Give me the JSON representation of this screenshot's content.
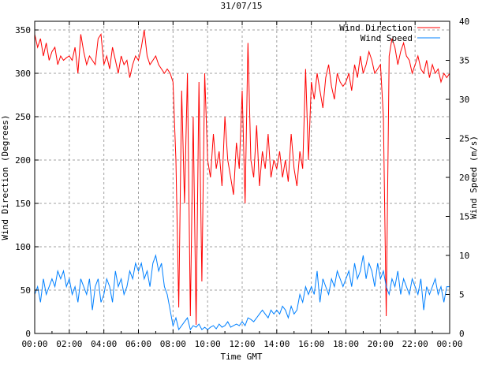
{
  "chart_data": {
    "type": "line",
    "title": "31/07/15",
    "xlabel": "Time GMT",
    "ylabel": "Wind Direction (Degrees)",
    "y2label": "Wind Speed (m/s)",
    "x_ticks": [
      "00:00",
      "02:00",
      "04:00",
      "06:00",
      "08:00",
      "10:00",
      "12:00",
      "14:00",
      "16:00",
      "18:00",
      "20:00",
      "22:00",
      "00:00"
    ],
    "x_range_hours": [
      0,
      24
    ],
    "ylim": [
      0,
      360
    ],
    "y_ticks": [
      0,
      50,
      100,
      150,
      200,
      250,
      300,
      350
    ],
    "y2lim": [
      0,
      40
    ],
    "y2_ticks": [
      0,
      5,
      10,
      15,
      20,
      25,
      30,
      35,
      40
    ],
    "grid": true,
    "legend_position": "top-right",
    "x_step_minutes": 10,
    "series": [
      {
        "name": "Wind Direction",
        "color": "#ff0000",
        "axis": "left",
        "values": [
          345,
          330,
          340,
          320,
          335,
          315,
          325,
          330,
          310,
          320,
          315,
          318,
          320,
          315,
          330,
          300,
          345,
          325,
          310,
          320,
          315,
          310,
          340,
          345,
          310,
          320,
          305,
          330,
          315,
          300,
          320,
          310,
          315,
          295,
          310,
          320,
          315,
          330,
          350,
          320,
          310,
          315,
          320,
          310,
          305,
          300,
          305,
          300,
          290,
          200,
          30,
          280,
          150,
          300,
          20,
          250,
          10,
          290,
          60,
          300,
          200,
          180,
          230,
          190,
          210,
          170,
          250,
          200,
          180,
          160,
          220,
          190,
          280,
          150,
          335,
          200,
          180,
          240,
          170,
          210,
          190,
          230,
          180,
          200,
          190,
          210,
          180,
          200,
          175,
          230,
          190,
          170,
          210,
          190,
          305,
          200,
          290,
          270,
          300,
          280,
          260,
          295,
          310,
          285,
          270,
          300,
          290,
          285,
          290,
          300,
          280,
          310,
          295,
          320,
          300,
          310,
          325,
          315,
          300,
          305,
          310,
          250,
          20,
          320,
          340,
          330,
          310,
          325,
          335,
          320,
          315,
          300,
          310,
          320,
          305,
          300,
          315,
          295,
          310,
          300,
          305,
          290,
          300,
          295,
          300
        ]
      },
      {
        "name": "Wind Speed",
        "color": "#0080ff",
        "axis": "right",
        "values": [
          5,
          6,
          4,
          7,
          5,
          6,
          7,
          6,
          8,
          7,
          8,
          6,
          7,
          5,
          6,
          4,
          7,
          6,
          5,
          7,
          3,
          6,
          7,
          4,
          5,
          7,
          6,
          4,
          8,
          6,
          7,
          5,
          6,
          8,
          7,
          9,
          8,
          9,
          7,
          8,
          6,
          9,
          10,
          8,
          9,
          6,
          5,
          3,
          1,
          2,
          0.5,
          1,
          1.5,
          2,
          0.5,
          1,
          0.8,
          1.2,
          0.5,
          0.8,
          0.5,
          0.8,
          1,
          0.6,
          1.2,
          0.8,
          1,
          1.5,
          0.8,
          1,
          1.2,
          1,
          1.5,
          1,
          2,
          1.8,
          1.5,
          2,
          2.5,
          3,
          2.5,
          2,
          3,
          2.5,
          3,
          2.5,
          3.5,
          3,
          2,
          3.5,
          2.5,
          3,
          5,
          4,
          6,
          5,
          6,
          5,
          8,
          4,
          7,
          6,
          5,
          7,
          6,
          8,
          7,
          6,
          7,
          8,
          6,
          9,
          7,
          8,
          10,
          7,
          9,
          8,
          6,
          9,
          7,
          8,
          6,
          5,
          7,
          6,
          8,
          5,
          7,
          6,
          5,
          7,
          6,
          5,
          7,
          3,
          6,
          5,
          6,
          7,
          5,
          6,
          4,
          6,
          6
        ]
      }
    ]
  }
}
